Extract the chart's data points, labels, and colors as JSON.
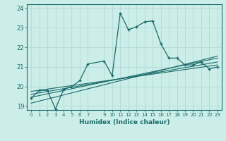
{
  "xlabel": "Humidex (Indice chaleur)",
  "background_color": "#cceee8",
  "line_color": "#1a6b6b",
  "grid_color": "#b8ddd8",
  "xlim": [
    -0.5,
    23.5
  ],
  "ylim": [
    18.8,
    24.2
  ],
  "yticks": [
    19,
    20,
    21,
    22,
    23,
    24
  ],
  "xticks": [
    0,
    1,
    2,
    3,
    4,
    5,
    6,
    7,
    9,
    10,
    11,
    12,
    13,
    14,
    15,
    16,
    17,
    18,
    19,
    20,
    21,
    22,
    23
  ],
  "main_x": [
    0,
    1,
    2,
    3,
    4,
    5,
    6,
    7,
    9,
    10,
    11,
    12,
    13,
    14,
    15,
    16,
    17,
    18,
    19,
    20,
    21,
    22,
    23
  ],
  "main_y": [
    19.4,
    19.8,
    19.8,
    18.85,
    19.85,
    20.0,
    20.3,
    21.15,
    21.3,
    20.55,
    23.75,
    22.9,
    23.05,
    23.3,
    23.35,
    22.2,
    21.45,
    21.45,
    21.1,
    21.1,
    21.25,
    20.9,
    21.0
  ],
  "line1_x": [
    0,
    23
  ],
  "line1_y": [
    19.15,
    21.55
  ],
  "line2_x": [
    0,
    23
  ],
  "line2_y": [
    19.45,
    21.45
  ],
  "line3_x": [
    0,
    23
  ],
  "line3_y": [
    19.6,
    21.25
  ],
  "line4_x": [
    0,
    23
  ],
  "line4_y": [
    19.75,
    21.1
  ]
}
